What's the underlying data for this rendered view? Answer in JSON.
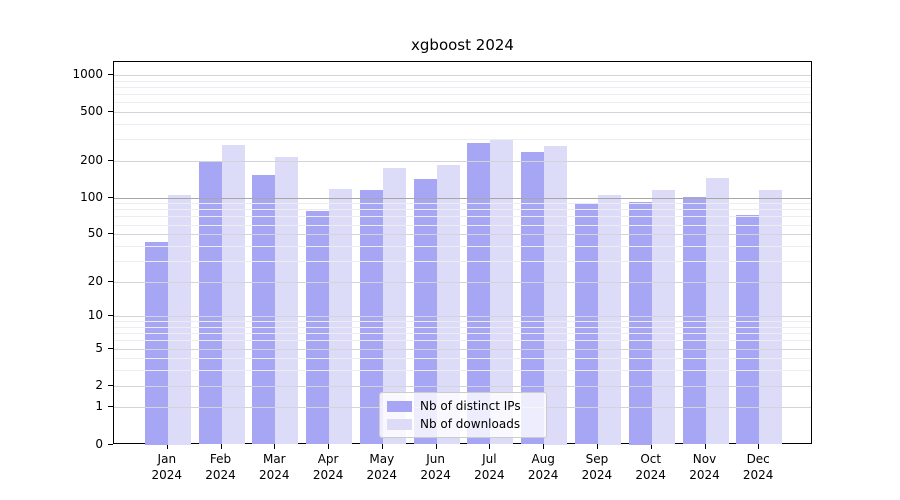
{
  "title": "xgboost 2024",
  "legend": {
    "items": [
      {
        "label": "Nb of distinct IPs",
        "color": "#a6a6f5"
      },
      {
        "label": "Nb of downloads",
        "color": "#dcdcf8"
      }
    ]
  },
  "chart_data": {
    "type": "bar",
    "title": "xgboost 2024",
    "categories": [
      "Jan",
      "Feb",
      "Mar",
      "Apr",
      "May",
      "Jun",
      "Jul",
      "Aug",
      "Sep",
      "Oct",
      "Nov",
      "Dec"
    ],
    "year_label": "2024",
    "series": [
      {
        "name": "Nb of distinct IPs",
        "color": "#a6a6f5",
        "values": [
          43,
          198,
          152,
          78,
          115,
          143,
          281,
          236,
          89,
          92,
          101,
          72
        ]
      },
      {
        "name": "Nb of downloads",
        "color": "#dcdcf8",
        "values": [
          106,
          267,
          215,
          118,
          176,
          184,
          303,
          264,
          106,
          115,
          145,
          115
        ]
      }
    ],
    "xlabel": "",
    "ylabel": "",
    "yscale": "log1p",
    "yticks": [
      0,
      1,
      2,
      5,
      10,
      20,
      50,
      100,
      200,
      500,
      1000
    ],
    "yticks_minor": [
      3,
      4,
      6,
      7,
      8,
      9,
      30,
      40,
      60,
      70,
      80,
      90,
      300,
      400,
      600,
      700,
      800,
      900
    ],
    "ylim": [
      0,
      1272
    ],
    "grid": true,
    "legend_position": "lower center"
  }
}
